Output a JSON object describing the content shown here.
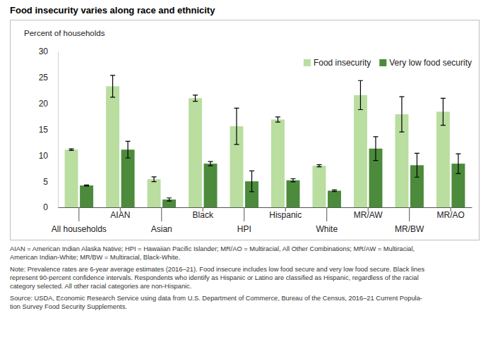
{
  "chart_data": {
    "type": "bar",
    "title": "Food insecurity varies along race and ethnicity",
    "y_label": "Percent of households",
    "categories": [
      "All households",
      "AIAN",
      "Asian",
      "Black",
      "HPI",
      "Hispanic",
      "White",
      "MR/AW",
      "MR/BW",
      "MR/AO"
    ],
    "series": [
      {
        "name": "Food insecurity",
        "color": "#b9dea0",
        "values": [
          11.1,
          23.3,
          5.4,
          21.0,
          15.6,
          16.9,
          8.0,
          21.6,
          17.9,
          18.4
        ],
        "errors": [
          0.15,
          2.1,
          0.45,
          0.6,
          3.5,
          0.5,
          0.2,
          2.8,
          3.4,
          2.6
        ]
      },
      {
        "name": "Very low food security",
        "color": "#4b8b3b",
        "values": [
          4.2,
          11.1,
          1.5,
          8.4,
          5.0,
          5.2,
          3.2,
          11.3,
          8.1,
          8.4
        ],
        "errors": [
          0.1,
          1.6,
          0.3,
          0.4,
          2.0,
          0.3,
          0.15,
          2.3,
          2.3,
          1.9
        ]
      }
    ],
    "ylim": [
      0,
      30
    ],
    "yticks": [
      0,
      5,
      10,
      15,
      20,
      25,
      30
    ],
    "grid": false,
    "legend": "upper right",
    "annotations": [
      "AIAN = American Indian Alaska Native; HPI = Hawaiian Pacific Islander; MR/AO = Multiracial, All Other Combinations; MR/AW = Multiracial,",
      "American Indian-White; MR/BW = Multiracial, Black-White.",
      "Note: Prevalence rates are 6-year average estimates (2016–21). Food insecure includes low food secure and very low food secure. Black lines",
      "represent 90-percent confidence intervals. Respondents who identify as Hispanic or Latino are classified as Hispanic, regardless of the racial",
      "category selected. All other racial categories are non-Hispanic.",
      "Source: USDA, Economic Research Service using data from U.S. Department of Commerce, Bureau of the Census, 2016–21 Current Popula-",
      "tion Survey Food Security Supplements."
    ]
  }
}
